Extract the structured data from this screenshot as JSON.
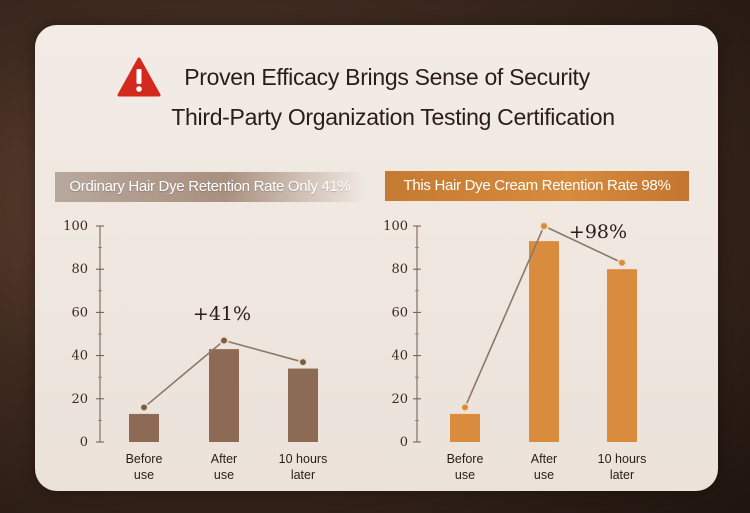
{
  "header": {
    "title_line1": "Proven Efficacy Brings Sense of Security",
    "title_line2": "Third-Party Organization Testing Certification",
    "warning_icon": "warning-triangle-icon",
    "warning_color": "#d42a1e"
  },
  "chart_data": [
    {
      "type": "bar",
      "title": "Ordinary Hair Dye Retention Rate Only 41%",
      "categories": [
        "Before use",
        "After use",
        "10 hours later"
      ],
      "values": [
        13,
        43,
        34
      ],
      "line_values": [
        16,
        47,
        37
      ],
      "annotation": "+41%",
      "ylim": [
        0,
        100
      ],
      "yticks": [
        0,
        20,
        40,
        60,
        80,
        100
      ],
      "bar_color": "#8d6a54",
      "banner_color": "#a99080"
    },
    {
      "type": "bar",
      "title": "This Hair Dye Cream Retention Rate 98%",
      "categories": [
        "Before use",
        "After use",
        "10 hours later"
      ],
      "values": [
        13,
        93,
        80
      ],
      "line_values": [
        16,
        100,
        83
      ],
      "annotation": "+98%",
      "ylim": [
        0,
        100
      ],
      "yticks": [
        0,
        20,
        40,
        60,
        80,
        100
      ],
      "bar_color": "#d98c3e",
      "banner_color": "#d68b3d"
    }
  ]
}
